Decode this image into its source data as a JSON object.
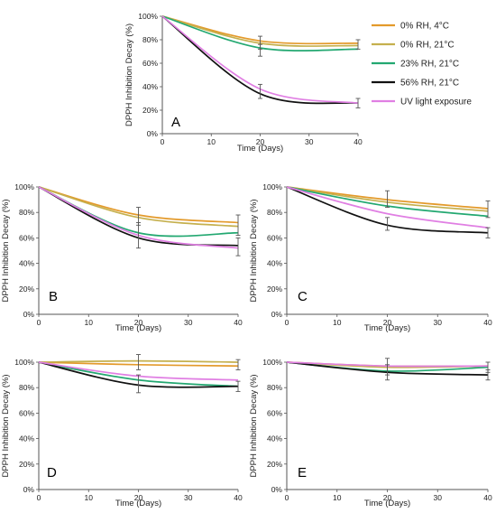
{
  "legend": [
    {
      "label": "0% RH, 4°C",
      "color": "#E39A2B"
    },
    {
      "label": "0% RH, 21°C",
      "color": "#C5B04E"
    },
    {
      "label": "23% RH, 21°C",
      "color": "#23A871"
    },
    {
      "label": "56% RH, 21°C",
      "color": "#111111"
    },
    {
      "label": "UV light exposure",
      "color": "#E07FE3"
    }
  ],
  "chart_data": [
    {
      "panel": "A",
      "type": "line",
      "xlabel": "Time (Days)",
      "ylabel": "DPPH Inhibition Decay (%)",
      "xlim": [
        0,
        40
      ],
      "ylim": [
        0,
        100
      ],
      "xticks": [
        "0",
        "10",
        "20",
        "30",
        "40"
      ],
      "yticks": [
        "0%",
        "20%",
        "40%",
        "60%",
        "80%",
        "100%"
      ],
      "series": [
        {
          "name": "0% RH, 4°C",
          "color": "#E39A2B",
          "points": [
            [
              0,
              100
            ],
            [
              20,
              79
            ],
            [
              40,
              77
            ]
          ]
        },
        {
          "name": "0% RH, 21°C",
          "color": "#C5B04E",
          "points": [
            [
              0,
              100
            ],
            [
              20,
              77
            ],
            [
              40,
              75
            ]
          ]
        },
        {
          "name": "23% RH, 21°C",
          "color": "#23A871",
          "points": [
            [
              0,
              100
            ],
            [
              20,
              73
            ],
            [
              40,
              72
            ]
          ]
        },
        {
          "name": "56% RH, 21°C",
          "color": "#111111",
          "points": [
            [
              0,
              100
            ],
            [
              20,
              34
            ],
            [
              40,
              26
            ]
          ]
        },
        {
          "name": "UV light exposure",
          "color": "#E07FE3",
          "points": [
            [
              0,
              100
            ],
            [
              20,
              38
            ],
            [
              40,
              26
            ]
          ]
        }
      ],
      "error_bars": [
        [
          20,
          72,
          83
        ],
        [
          20,
          66,
          76
        ],
        [
          20,
          30,
          42
        ],
        [
          40,
          72,
          80
        ],
        [
          40,
          22,
          30
        ]
      ]
    },
    {
      "panel": "B",
      "type": "line",
      "xlabel": "Time (Days)",
      "ylabel": "DPPH Inhibition Decay (%)",
      "xlim": [
        0,
        40
      ],
      "ylim": [
        0,
        100
      ],
      "xticks": [
        "0",
        "10",
        "20",
        "30",
        "40"
      ],
      "yticks": [
        "0%",
        "20%",
        "40%",
        "60%",
        "80%",
        "100%"
      ],
      "series": [
        {
          "name": "0% RH, 4°C",
          "color": "#E39A2B",
          "points": [
            [
              0,
              100
            ],
            [
              20,
              78
            ],
            [
              40,
              72
            ]
          ]
        },
        {
          "name": "0% RH, 21°C",
          "color": "#C5B04E",
          "points": [
            [
              0,
              100
            ],
            [
              20,
              76
            ],
            [
              40,
              69
            ]
          ]
        },
        {
          "name": "23% RH, 21°C",
          "color": "#23A871",
          "points": [
            [
              0,
              100
            ],
            [
              20,
              64
            ],
            [
              40,
              64
            ]
          ]
        },
        {
          "name": "56% RH, 21°C",
          "color": "#111111",
          "points": [
            [
              0,
              100
            ],
            [
              20,
              60
            ],
            [
              40,
              54
            ]
          ]
        },
        {
          "name": "UV light exposure",
          "color": "#E07FE3",
          "points": [
            [
              0,
              100
            ],
            [
              20,
              62
            ],
            [
              40,
              52
            ]
          ]
        }
      ],
      "error_bars": [
        [
          20,
          70,
          84
        ],
        [
          20,
          52,
          72
        ],
        [
          40,
          62,
          78
        ],
        [
          40,
          46,
          60
        ]
      ]
    },
    {
      "panel": "C",
      "type": "line",
      "xlabel": "Time (Days)",
      "ylabel": "DPPH Inhibition Decay (%)",
      "xlim": [
        0,
        40
      ],
      "ylim": [
        0,
        100
      ],
      "xticks": [
        "0",
        "10",
        "20",
        "30",
        "40"
      ],
      "yticks": [
        "0%",
        "20%",
        "40%",
        "60%",
        "80%",
        "100%"
      ],
      "series": [
        {
          "name": "0% RH, 4°C",
          "color": "#E39A2B",
          "points": [
            [
              0,
              100
            ],
            [
              20,
              90
            ],
            [
              40,
              83
            ]
          ]
        },
        {
          "name": "0% RH, 21°C",
          "color": "#C5B04E",
          "points": [
            [
              0,
              100
            ],
            [
              20,
              88
            ],
            [
              40,
              81
            ]
          ]
        },
        {
          "name": "23% RH, 21°C",
          "color": "#23A871",
          "points": [
            [
              0,
              100
            ],
            [
              20,
              85
            ],
            [
              40,
              77
            ]
          ]
        },
        {
          "name": "56% RH, 21°C",
          "color": "#111111",
          "points": [
            [
              0,
              100
            ],
            [
              20,
              70
            ],
            [
              40,
              64
            ]
          ]
        },
        {
          "name": "UV light exposure",
          "color": "#E07FE3",
          "points": [
            [
              0,
              100
            ],
            [
              20,
              79
            ],
            [
              40,
              68
            ]
          ]
        }
      ],
      "error_bars": [
        [
          20,
          84,
          97
        ],
        [
          20,
          66,
          76
        ],
        [
          40,
          76,
          89
        ],
        [
          40,
          60,
          68
        ]
      ]
    },
    {
      "panel": "D",
      "type": "line",
      "xlabel": "Time (Days)",
      "ylabel": "DPPH Inhibition Decay (%)",
      "xlim": [
        0,
        40
      ],
      "ylim": [
        0,
        100
      ],
      "xticks": [
        "0",
        "10",
        "20",
        "30",
        "40"
      ],
      "yticks": [
        "0%",
        "20%",
        "40%",
        "60%",
        "80%",
        "100%"
      ],
      "series": [
        {
          "name": "0% RH, 4°C",
          "color": "#E39A2B",
          "points": [
            [
              0,
              100
            ],
            [
              20,
              98
            ],
            [
              40,
              97
            ]
          ]
        },
        {
          "name": "0% RH, 21°C",
          "color": "#C5B04E",
          "points": [
            [
              0,
              100
            ],
            [
              20,
              101
            ],
            [
              40,
              100
            ]
          ]
        },
        {
          "name": "23% RH, 21°C",
          "color": "#23A871",
          "points": [
            [
              0,
              100
            ],
            [
              20,
              86
            ],
            [
              40,
              81
            ]
          ]
        },
        {
          "name": "56% RH, 21°C",
          "color": "#111111",
          "points": [
            [
              0,
              100
            ],
            [
              20,
              82
            ],
            [
              40,
              81
            ]
          ]
        },
        {
          "name": "UV light exposure",
          "color": "#E07FE3",
          "points": [
            [
              0,
              100
            ],
            [
              20,
              89
            ],
            [
              40,
              86
            ]
          ]
        }
      ],
      "error_bars": [
        [
          20,
          94,
          106
        ],
        [
          20,
          76,
          90
        ],
        [
          40,
          94,
          102
        ],
        [
          40,
          77,
          85
        ]
      ]
    },
    {
      "panel": "E",
      "type": "line",
      "xlabel": "Time (Days)",
      "ylabel": "DPPH Inhibition Decay (%)",
      "xlim": [
        0,
        40
      ],
      "ylim": [
        0,
        100
      ],
      "xticks": [
        "0",
        "10",
        "20",
        "30",
        "40"
      ],
      "yticks": [
        "0%",
        "20%",
        "40%",
        "60%",
        "80%",
        "100%"
      ],
      "series": [
        {
          "name": "0% RH, 4°C",
          "color": "#E39A2B",
          "points": [
            [
              0,
              100
            ],
            [
              20,
              97
            ],
            [
              40,
              97
            ]
          ]
        },
        {
          "name": "0% RH, 21°C",
          "color": "#C5B04E",
          "points": [
            [
              0,
              100
            ],
            [
              20,
              96
            ],
            [
              40,
              97
            ]
          ]
        },
        {
          "name": "23% RH, 21°C",
          "color": "#23A871",
          "points": [
            [
              0,
              100
            ],
            [
              20,
              93
            ],
            [
              40,
              96
            ]
          ]
        },
        {
          "name": "56% RH, 21°C",
          "color": "#111111",
          "points": [
            [
              0,
              100
            ],
            [
              20,
              92
            ],
            [
              40,
              90
            ]
          ]
        },
        {
          "name": "UV light exposure",
          "color": "#E07FE3",
          "points": [
            [
              0,
              100
            ],
            [
              20,
              97
            ],
            [
              40,
              97
            ]
          ]
        }
      ],
      "error_bars": [
        [
          20,
          90,
          103
        ],
        [
          20,
          86,
          98
        ],
        [
          40,
          92,
          100
        ],
        [
          40,
          86,
          94
        ]
      ]
    }
  ]
}
